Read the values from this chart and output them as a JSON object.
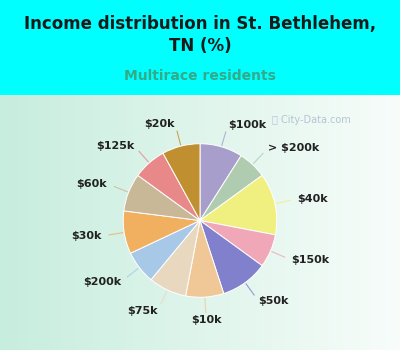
{
  "title": "Income distribution in St. Bethlehem,\nTN (%)",
  "subtitle": "Multirace residents",
  "background_color": "#00ffff",
  "chart_bg_color": "#d8efe8",
  "slices": [
    {
      "label": "$100k",
      "value": 9,
      "color": "#a89ecc"
    },
    {
      "label": "> $200k",
      "value": 6,
      "color": "#b0ccb0"
    },
    {
      "label": "$40k",
      "value": 13,
      "color": "#f0f080"
    },
    {
      "label": "$150k",
      "value": 7,
      "color": "#f0a8b8"
    },
    {
      "label": "$50k",
      "value": 10,
      "color": "#8080cc"
    },
    {
      "label": "$10k",
      "value": 8,
      "color": "#f0c898"
    },
    {
      "label": "$75k",
      "value": 8,
      "color": "#e8d8c0"
    },
    {
      "label": "$200k",
      "value": 7,
      "color": "#a8c8e8"
    },
    {
      "label": "$30k",
      "value": 9,
      "color": "#f0b060"
    },
    {
      "label": "$60k",
      "value": 8,
      "color": "#c8b898"
    },
    {
      "label": "$125k",
      "value": 7,
      "color": "#e88888"
    },
    {
      "label": "$20k",
      "value": 8,
      "color": "#c09030"
    }
  ],
  "label_fontsize": 8,
  "title_fontsize": 12,
  "subtitle_fontsize": 10,
  "title_color": "#1a1a1a",
  "subtitle_color": "#33aa88",
  "watermark": "City-Data.com",
  "watermark_color": "#aabbcc",
  "watermark_fontsize": 7
}
